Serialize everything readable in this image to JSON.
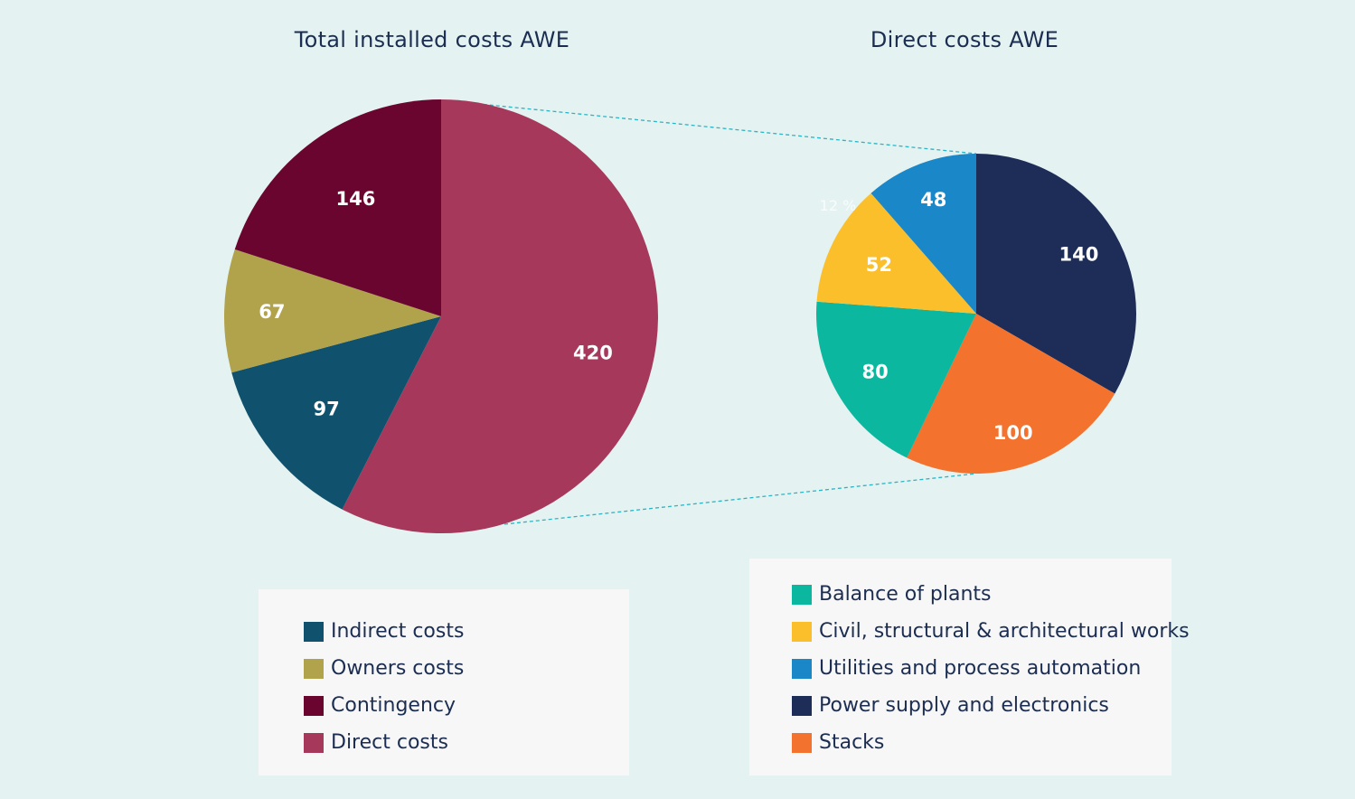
{
  "colors": {
    "indirect": "#10526d",
    "owners": "#b1a24c",
    "contingency": "#6a0530",
    "direct": "#a6395b",
    "balance": "#0bb89f",
    "civil": "#fcbf2c",
    "utilities": "#1987c8",
    "power": "#1d2d58",
    "stacks": "#f2722e",
    "connector": "#2ab5c4"
  },
  "chart_data": [
    {
      "type": "pie",
      "title": "Total installed costs AWE",
      "start_angle_deg": 0,
      "slices": [
        {
          "name": "Direct costs",
          "value": 420,
          "color_key": "direct"
        },
        {
          "name": "Indirect costs",
          "value": 97,
          "color_key": "indirect"
        },
        {
          "name": "Owners costs",
          "value": 67,
          "color_key": "owners"
        },
        {
          "name": "Contingency",
          "value": 146,
          "color_key": "contingency"
        }
      ],
      "legend": [
        "Indirect costs",
        "Owners costs",
        "Contingency",
        "Direct costs"
      ],
      "legend_placement": "bottom"
    },
    {
      "type": "pie",
      "title": "Direct costs AWE",
      "start_angle_deg": 0,
      "slices": [
        {
          "name": "Power supply and electronics",
          "value": 140,
          "color_key": "power"
        },
        {
          "name": "Stacks",
          "value": 100,
          "color_key": "stacks"
        },
        {
          "name": "Balance of plants",
          "value": 80,
          "color_key": "balance"
        },
        {
          "name": "Civil, structural & architectural works",
          "value": 52,
          "color_key": "civil"
        },
        {
          "name": "Utilities and process automation",
          "value": 48,
          "color_key": "utilities"
        }
      ],
      "legend": [
        "Balance of plants",
        "Civil, structural & architectural works",
        "Utilities and process automation",
        "Power supply and electronics",
        "Stacks"
      ],
      "legend_placement": "bottom",
      "annotations": [
        "12 %"
      ]
    }
  ],
  "legend1": {
    "items": [
      {
        "label": "Indirect costs",
        "color_key": "indirect"
      },
      {
        "label": "Owners costs",
        "color_key": "owners"
      },
      {
        "label": "Contingency",
        "color_key": "contingency"
      },
      {
        "label": "Direct costs",
        "color_key": "direct"
      }
    ]
  },
  "legend2": {
    "items": [
      {
        "label": "Balance of plants",
        "color_key": "balance"
      },
      {
        "label": "Civil, structural & architectural works",
        "color_key": "civil"
      },
      {
        "label": "Utilities and process automation",
        "color_key": "utilities"
      },
      {
        "label": "Power supply and electronics",
        "color_key": "power"
      },
      {
        "label": "Stacks",
        "color_key": "stacks"
      }
    ]
  }
}
